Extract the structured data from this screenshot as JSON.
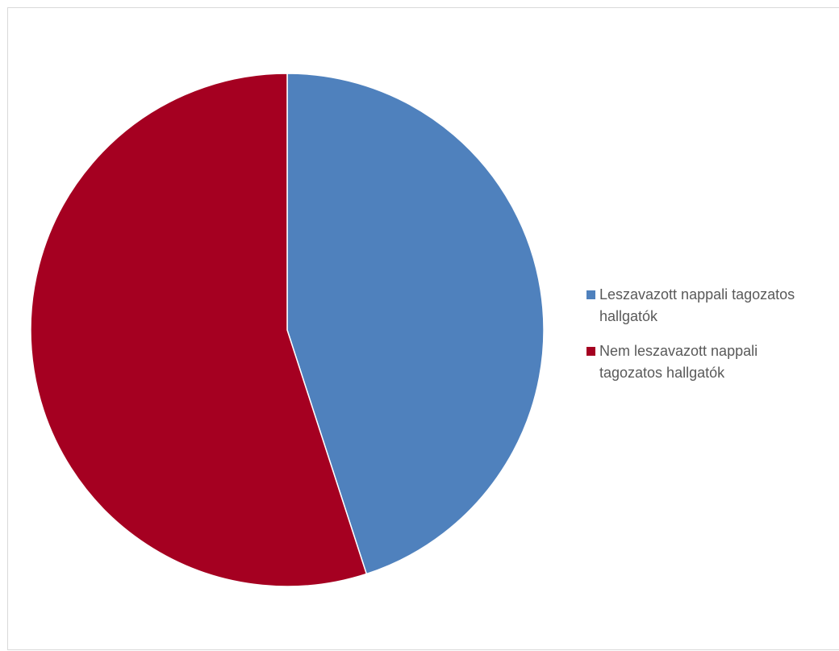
{
  "chart_data": {
    "type": "pie",
    "title": "",
    "series": [
      {
        "values": [
          45,
          55
        ]
      }
    ],
    "categories": [
      "Leszavazott nappali tagozatos hallgatók",
      "Nem leszavazott nappali tagozatos hallgatók"
    ],
    "legend_lines": [
      [
        "Leszavazott nappali tagozatos",
        "hallgatók"
      ],
      [
        "Nem leszavazott nappali",
        "tagozatos hallgatók"
      ]
    ],
    "colors": [
      "#4f81bd",
      "#a50021"
    ],
    "start_angle_deg": 0,
    "direction": "clockwise",
    "legend_position": "right"
  }
}
